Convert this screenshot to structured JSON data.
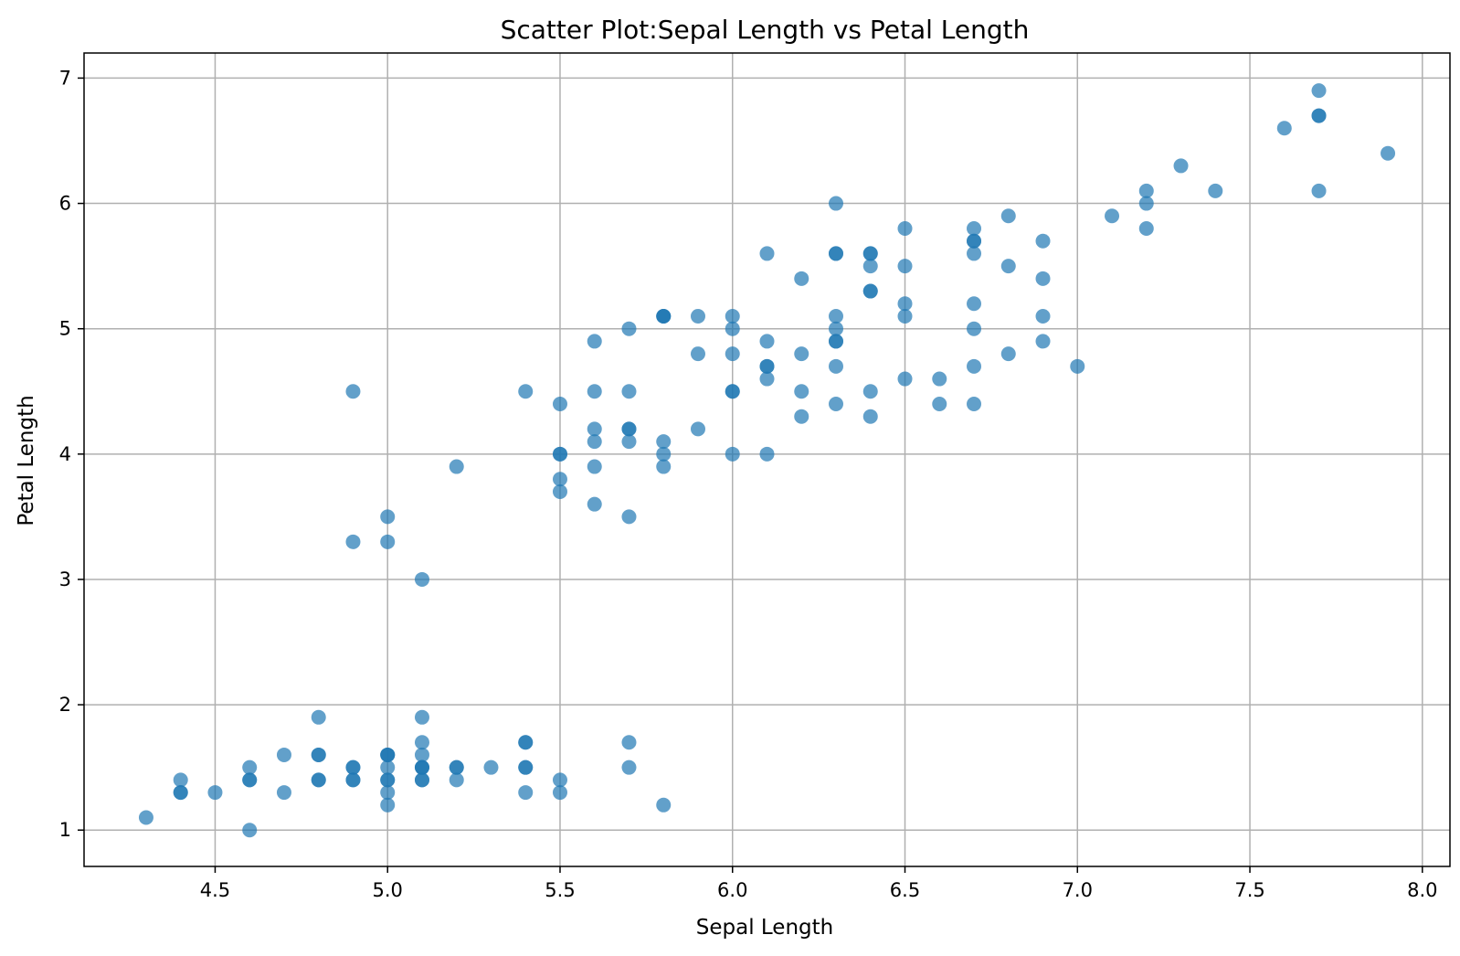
{
  "chart_data": {
    "type": "scatter",
    "title": "Scatter Plot:Sepal Length vs Petal Length",
    "xlabel": "Sepal Length",
    "ylabel": "Petal Length",
    "xlim": [
      4.12,
      8.08
    ],
    "ylim": [
      0.71,
      7.2
    ],
    "xticks": [
      4.5,
      5.0,
      5.5,
      6.0,
      6.5,
      7.0,
      7.5,
      8.0
    ],
    "xtick_labels": [
      "4.5",
      "5.0",
      "5.5",
      "6.0",
      "6.5",
      "7.0",
      "7.5",
      "8.0"
    ],
    "yticks": [
      1,
      2,
      3,
      4,
      5,
      6,
      7
    ],
    "ytick_labels": [
      "1",
      "2",
      "3",
      "4",
      "5",
      "6",
      "7"
    ],
    "grid": true,
    "point_color": "#1f77b4",
    "point_opacity": 0.7,
    "points": [
      [
        5.1,
        1.4
      ],
      [
        4.9,
        1.4
      ],
      [
        4.7,
        1.3
      ],
      [
        4.6,
        1.5
      ],
      [
        5.0,
        1.4
      ],
      [
        5.4,
        1.7
      ],
      [
        4.6,
        1.4
      ],
      [
        5.0,
        1.5
      ],
      [
        4.4,
        1.4
      ],
      [
        4.9,
        1.5
      ],
      [
        5.4,
        1.5
      ],
      [
        4.8,
        1.6
      ],
      [
        4.8,
        1.4
      ],
      [
        4.3,
        1.1
      ],
      [
        5.8,
        1.2
      ],
      [
        5.7,
        1.5
      ],
      [
        5.4,
        1.3
      ],
      [
        5.1,
        1.4
      ],
      [
        5.7,
        1.7
      ],
      [
        5.1,
        1.5
      ],
      [
        5.4,
        1.7
      ],
      [
        5.1,
        1.5
      ],
      [
        4.6,
        1.0
      ],
      [
        5.1,
        1.7
      ],
      [
        4.8,
        1.9
      ],
      [
        5.0,
        1.6
      ],
      [
        5.0,
        1.6
      ],
      [
        5.2,
        1.5
      ],
      [
        5.2,
        1.4
      ],
      [
        4.7,
        1.6
      ],
      [
        4.8,
        1.6
      ],
      [
        5.4,
        1.5
      ],
      [
        5.2,
        1.5
      ],
      [
        5.5,
        1.4
      ],
      [
        4.9,
        1.5
      ],
      [
        5.0,
        1.2
      ],
      [
        5.5,
        1.3
      ],
      [
        4.9,
        1.4
      ],
      [
        4.4,
        1.3
      ],
      [
        5.1,
        1.5
      ],
      [
        5.0,
        1.3
      ],
      [
        4.5,
        1.3
      ],
      [
        4.4,
        1.3
      ],
      [
        5.0,
        1.6
      ],
      [
        5.1,
        1.9
      ],
      [
        4.8,
        1.4
      ],
      [
        5.1,
        1.6
      ],
      [
        4.6,
        1.4
      ],
      [
        5.3,
        1.5
      ],
      [
        5.0,
        1.4
      ],
      [
        7.0,
        4.7
      ],
      [
        6.4,
        4.5
      ],
      [
        6.9,
        4.9
      ],
      [
        5.5,
        4.0
      ],
      [
        6.5,
        4.6
      ],
      [
        5.7,
        4.5
      ],
      [
        6.3,
        4.7
      ],
      [
        4.9,
        3.3
      ],
      [
        6.6,
        4.6
      ],
      [
        5.2,
        3.9
      ],
      [
        5.0,
        3.5
      ],
      [
        5.9,
        4.2
      ],
      [
        6.0,
        4.0
      ],
      [
        6.1,
        4.7
      ],
      [
        5.6,
        3.6
      ],
      [
        6.7,
        4.4
      ],
      [
        5.6,
        4.5
      ],
      [
        5.8,
        4.1
      ],
      [
        6.2,
        4.5
      ],
      [
        5.6,
        3.9
      ],
      [
        5.9,
        4.8
      ],
      [
        6.1,
        4.0
      ],
      [
        6.3,
        4.9
      ],
      [
        6.1,
        4.7
      ],
      [
        6.4,
        4.3
      ],
      [
        6.6,
        4.4
      ],
      [
        6.8,
        4.8
      ],
      [
        6.7,
        5.0
      ],
      [
        6.0,
        4.5
      ],
      [
        5.7,
        3.5
      ],
      [
        5.5,
        3.8
      ],
      [
        5.5,
        3.7
      ],
      [
        5.8,
        3.9
      ],
      [
        6.0,
        5.1
      ],
      [
        5.4,
        4.5
      ],
      [
        6.0,
        4.5
      ],
      [
        6.7,
        4.7
      ],
      [
        6.3,
        4.4
      ],
      [
        5.6,
        4.1
      ],
      [
        5.5,
        4.0
      ],
      [
        5.5,
        4.4
      ],
      [
        6.1,
        4.6
      ],
      [
        5.8,
        4.0
      ],
      [
        5.0,
        3.3
      ],
      [
        5.6,
        4.2
      ],
      [
        5.7,
        4.2
      ],
      [
        5.7,
        4.2
      ],
      [
        6.2,
        4.3
      ],
      [
        5.1,
        3.0
      ],
      [
        5.7,
        4.1
      ],
      [
        6.3,
        6.0
      ],
      [
        5.8,
        5.1
      ],
      [
        7.1,
        5.9
      ],
      [
        6.3,
        5.6
      ],
      [
        6.5,
        5.8
      ],
      [
        7.6,
        6.6
      ],
      [
        4.9,
        4.5
      ],
      [
        7.3,
        6.3
      ],
      [
        6.7,
        5.8
      ],
      [
        7.2,
        6.1
      ],
      [
        6.5,
        5.1
      ],
      [
        6.4,
        5.3
      ],
      [
        6.8,
        5.5
      ],
      [
        5.7,
        5.0
      ],
      [
        5.8,
        5.1
      ],
      [
        6.4,
        5.3
      ],
      [
        6.5,
        5.5
      ],
      [
        7.7,
        6.7
      ],
      [
        7.7,
        6.9
      ],
      [
        6.0,
        5.0
      ],
      [
        6.9,
        5.7
      ],
      [
        5.6,
        4.9
      ],
      [
        7.7,
        6.7
      ],
      [
        6.3,
        4.9
      ],
      [
        6.7,
        5.7
      ],
      [
        7.2,
        6.0
      ],
      [
        6.2,
        4.8
      ],
      [
        6.1,
        4.9
      ],
      [
        6.4,
        5.6
      ],
      [
        7.2,
        5.8
      ],
      [
        7.4,
        6.1
      ],
      [
        7.9,
        6.4
      ],
      [
        6.4,
        5.6
      ],
      [
        6.3,
        5.1
      ],
      [
        6.1,
        5.6
      ],
      [
        7.7,
        6.1
      ],
      [
        6.3,
        5.6
      ],
      [
        6.4,
        5.5
      ],
      [
        6.0,
        4.8
      ],
      [
        6.9,
        5.4
      ],
      [
        6.7,
        5.6
      ],
      [
        6.9,
        5.1
      ],
      [
        5.8,
        5.1
      ],
      [
        6.8,
        5.9
      ],
      [
        6.7,
        5.7
      ],
      [
        6.7,
        5.2
      ],
      [
        6.3,
        5.0
      ],
      [
        6.5,
        5.2
      ],
      [
        6.2,
        5.4
      ],
      [
        5.9,
        5.1
      ]
    ]
  }
}
